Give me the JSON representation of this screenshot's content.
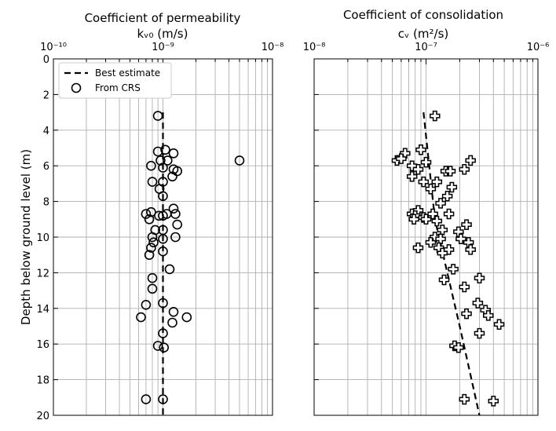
{
  "ylabel": "Depth below ground level (m)",
  "y_ticks": [
    "0",
    "2",
    "4",
    "6",
    "8",
    "10",
    "12",
    "14",
    "16",
    "18",
    "20"
  ],
  "legend": {
    "best_label": "Best estimate",
    "crs_label": "From CRS"
  },
  "chart_data": [
    {
      "type": "scatter",
      "id": "permeability",
      "title": "Coefficient of permeability",
      "units_label": "kᵥ₀ (m/s)",
      "xscale": "log",
      "xlim": [
        1e-10,
        1e-08
      ],
      "ylim": [
        20,
        0
      ],
      "x_ticks": [
        "10⁻¹⁰",
        "10⁻⁹",
        "10⁻⁸"
      ],
      "grid": true,
      "legend_position": "top-left",
      "series": [
        {
          "name": "Best estimate",
          "style": "dashed-line",
          "points": [
            {
              "x": 1e-09,
              "y": 3.0
            },
            {
              "x": 1e-09,
              "y": 20.0
            }
          ]
        },
        {
          "name": "From CRS",
          "marker": "circle",
          "points": [
            {
              "x": 9e-10,
              "y": 3.2
            },
            {
              "x": 9e-10,
              "y": 5.2
            },
            {
              "x": 1.05e-09,
              "y": 5.1
            },
            {
              "x": 1.25e-09,
              "y": 5.3
            },
            {
              "x": 9.5e-10,
              "y": 5.7
            },
            {
              "x": 1.1e-09,
              "y": 5.7
            },
            {
              "x": 5e-09,
              "y": 5.7
            },
            {
              "x": 7.8e-10,
              "y": 6.0
            },
            {
              "x": 1e-09,
              "y": 6.1
            },
            {
              "x": 1.25e-09,
              "y": 6.2
            },
            {
              "x": 1.35e-09,
              "y": 6.3
            },
            {
              "x": 1.22e-09,
              "y": 6.6
            },
            {
              "x": 8e-10,
              "y": 6.9
            },
            {
              "x": 1e-09,
              "y": 6.9
            },
            {
              "x": 9.3e-10,
              "y": 7.3
            },
            {
              "x": 1e-09,
              "y": 7.7
            },
            {
              "x": 1.25e-09,
              "y": 8.4
            },
            {
              "x": 7e-10,
              "y": 8.7
            },
            {
              "x": 7.8e-10,
              "y": 8.6
            },
            {
              "x": 9.2e-10,
              "y": 8.8
            },
            {
              "x": 1e-09,
              "y": 8.8
            },
            {
              "x": 1.08e-09,
              "y": 8.7
            },
            {
              "x": 1.3e-09,
              "y": 8.7
            },
            {
              "x": 7.5e-10,
              "y": 9.0
            },
            {
              "x": 1.35e-09,
              "y": 9.3
            },
            {
              "x": 8.5e-10,
              "y": 9.6
            },
            {
              "x": 1e-09,
              "y": 9.6
            },
            {
              "x": 8e-10,
              "y": 10.0
            },
            {
              "x": 1e-09,
              "y": 10.1
            },
            {
              "x": 1.3e-09,
              "y": 10.0
            },
            {
              "x": 8.2e-10,
              "y": 10.3
            },
            {
              "x": 7.8e-10,
              "y": 10.6
            },
            {
              "x": 1e-09,
              "y": 10.8
            },
            {
              "x": 7.5e-10,
              "y": 11.0
            },
            {
              "x": 1.15e-09,
              "y": 11.8
            },
            {
              "x": 8e-10,
              "y": 12.3
            },
            {
              "x": 8e-10,
              "y": 12.9
            },
            {
              "x": 7e-10,
              "y": 13.8
            },
            {
              "x": 1e-09,
              "y": 13.7
            },
            {
              "x": 1.25e-09,
              "y": 14.2
            },
            {
              "x": 6.3e-10,
              "y": 14.5
            },
            {
              "x": 1.65e-09,
              "y": 14.5
            },
            {
              "x": 1.22e-09,
              "y": 14.8
            },
            {
              "x": 1e-09,
              "y": 15.4
            },
            {
              "x": 9e-10,
              "y": 16.1
            },
            {
              "x": 1.02e-09,
              "y": 16.2
            },
            {
              "x": 7e-10,
              "y": 19.1
            },
            {
              "x": 1e-09,
              "y": 19.1
            }
          ]
        }
      ]
    },
    {
      "type": "scatter",
      "id": "consolidation",
      "title": "Coefficient of consolidation",
      "units_label": "cᵥ (m²/s)",
      "xscale": "log",
      "xlim": [
        1e-08,
        1e-06
      ],
      "ylim": [
        20,
        0
      ],
      "x_ticks": [
        "10⁻⁸",
        "10⁻⁷",
        "10⁻⁶"
      ],
      "grid": true,
      "series": [
        {
          "name": "Best estimate",
          "style": "dashed-line",
          "points": [
            {
              "x": 9.5e-08,
              "y": 3.0
            },
            {
              "x": 1.2e-07,
              "y": 9.0
            },
            {
              "x": 2e-07,
              "y": 15.0
            },
            {
              "x": 3e-07,
              "y": 20.0
            }
          ]
        },
        {
          "name": "From CRS",
          "marker": "plus",
          "points": [
            {
              "x": 1.2e-07,
              "y": 3.2
            },
            {
              "x": 6.5e-08,
              "y": 5.3
            },
            {
              "x": 9e-08,
              "y": 5.1
            },
            {
              "x": 5.5e-08,
              "y": 5.7
            },
            {
              "x": 6e-08,
              "y": 5.6
            },
            {
              "x": 1e-07,
              "y": 5.8
            },
            {
              "x": 2.5e-07,
              "y": 5.7
            },
            {
              "x": 7.5e-08,
              "y": 6.0
            },
            {
              "x": 8.5e-08,
              "y": 6.2
            },
            {
              "x": 1.5e-07,
              "y": 6.3
            },
            {
              "x": 1.65e-07,
              "y": 6.3
            },
            {
              "x": 2.2e-07,
              "y": 6.2
            },
            {
              "x": 7.5e-08,
              "y": 6.6
            },
            {
              "x": 9.5e-08,
              "y": 6.9
            },
            {
              "x": 1.25e-07,
              "y": 6.9
            },
            {
              "x": 1.1e-07,
              "y": 7.3
            },
            {
              "x": 1.7e-07,
              "y": 7.2
            },
            {
              "x": 1.55e-07,
              "y": 7.7
            },
            {
              "x": 1.35e-07,
              "y": 8.1
            },
            {
              "x": 8.5e-08,
              "y": 8.5
            },
            {
              "x": 7.5e-08,
              "y": 8.7
            },
            {
              "x": 8e-08,
              "y": 8.8
            },
            {
              "x": 9.5e-08,
              "y": 8.9
            },
            {
              "x": 1.15e-07,
              "y": 8.7
            },
            {
              "x": 1.6e-07,
              "y": 8.7
            },
            {
              "x": 7.8e-08,
              "y": 9.0
            },
            {
              "x": 1e-07,
              "y": 9.0
            },
            {
              "x": 1.25e-07,
              "y": 9.1
            },
            {
              "x": 2.3e-07,
              "y": 9.3
            },
            {
              "x": 1.4e-07,
              "y": 9.6
            },
            {
              "x": 1.95e-07,
              "y": 9.7
            },
            {
              "x": 1.2e-07,
              "y": 10.0
            },
            {
              "x": 1.35e-07,
              "y": 10.1
            },
            {
              "x": 2.05e-07,
              "y": 10.1
            },
            {
              "x": 2.4e-07,
              "y": 10.3
            },
            {
              "x": 1.1e-07,
              "y": 10.3
            },
            {
              "x": 1.3e-07,
              "y": 10.6
            },
            {
              "x": 8.5e-08,
              "y": 10.6
            },
            {
              "x": 1.6e-07,
              "y": 10.7
            },
            {
              "x": 2.5e-07,
              "y": 10.7
            },
            {
              "x": 1.4e-07,
              "y": 10.9
            },
            {
              "x": 1.75e-07,
              "y": 11.8
            },
            {
              "x": 1.45e-07,
              "y": 12.4
            },
            {
              "x": 3e-07,
              "y": 12.3
            },
            {
              "x": 2.2e-07,
              "y": 12.8
            },
            {
              "x": 2.9e-07,
              "y": 13.7
            },
            {
              "x": 3.4e-07,
              "y": 14.1
            },
            {
              "x": 2.3e-07,
              "y": 14.3
            },
            {
              "x": 3.6e-07,
              "y": 14.4
            },
            {
              "x": 4.5e-07,
              "y": 14.9
            },
            {
              "x": 3e-07,
              "y": 15.4
            },
            {
              "x": 1.8e-07,
              "y": 16.1
            },
            {
              "x": 1.95e-07,
              "y": 16.2
            },
            {
              "x": 2.2e-07,
              "y": 19.1
            },
            {
              "x": 4e-07,
              "y": 19.2
            }
          ]
        }
      ]
    }
  ]
}
